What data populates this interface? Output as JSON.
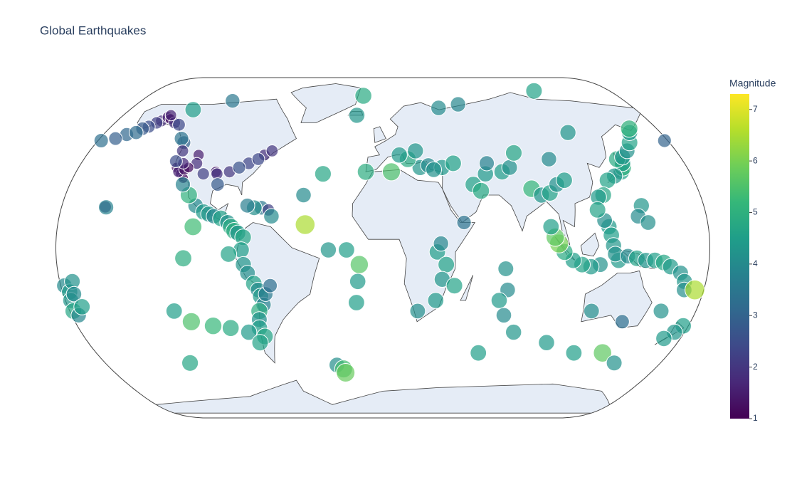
{
  "chart_data": {
    "type": "scattergeo",
    "title": "Global Earthquakes",
    "colorbar_title": "Magnitude",
    "cmin": 1,
    "cmax": 7.3,
    "colorticks": [
      1,
      2,
      3,
      4,
      5,
      6,
      7
    ],
    "colorscale": [
      "#440154",
      "#482878",
      "#3e4989",
      "#31688e",
      "#26828e",
      "#1f9e89",
      "#35b779",
      "#6ece58",
      "#b5de2b",
      "#fde725"
    ],
    "projection": "natural earth",
    "lon": [
      -150,
      -148,
      -152,
      -145,
      -155,
      -140,
      -136,
      -147,
      -158,
      -165,
      -170,
      -178,
      178,
      -160,
      -155.5,
      -155,
      -135,
      -112,
      -125,
      -128,
      -122,
      -118,
      -116,
      -120,
      -117,
      -112,
      -111,
      -115,
      -119,
      -124,
      -123,
      -105,
      -98,
      -97,
      -90,
      -95,
      -80,
      -72,
      -68,
      -75,
      -85,
      -105,
      -100,
      -97,
      -94,
      -110,
      -115,
      -90,
      -86,
      -84,
      -82,
      -80,
      -68,
      -64,
      -62,
      -72,
      -76,
      -77,
      -78,
      -77,
      -75,
      -72,
      -70,
      -69,
      -68,
      -71,
      -72,
      -73,
      -71,
      -66,
      -63,
      -110,
      -105,
      -85,
      -120,
      -112,
      -100,
      -90,
      -80,
      -75,
      -125,
      -43,
      -30,
      -20,
      -13,
      -14,
      -15,
      -35,
      -45,
      -18,
      -30,
      -26,
      -25,
      22,
      27,
      35,
      42,
      30,
      15,
      10,
      20,
      -10,
      5,
      52,
      56,
      60,
      70,
      75,
      85,
      90,
      95,
      100,
      105,
      80,
      100,
      62,
      55,
      40,
      120,
      120,
      -15,
      30,
      35,
      33,
      30,
      40,
      20,
      32,
      45,
      68,
      70,
      66,
      70,
      78,
      100,
      120,
      138,
      150,
      60,
      140,
      142,
      143,
      141,
      145,
      150,
      155,
      160,
      162,
      135,
      130,
      125,
      122,
      145,
      142,
      147,
      125,
      126,
      123,
      120,
      127,
      120,
      115,
      110,
      105,
      100,
      97,
      95,
      93,
      130,
      128,
      135,
      140,
      145,
      150,
      155,
      159,
      165,
      168,
      169,
      -178,
      -176,
      -177,
      -178,
      -176,
      177,
      174,
      170,
      175,
      160,
      140,
      120,
      -173,
      -174,
      -172
    ],
    "lat": [
      61,
      63,
      60,
      62,
      58,
      60,
      59,
      64,
      57,
      54,
      52,
      51,
      51,
      55,
      19.4,
      19.2,
      67,
      72,
      50,
      52,
      38,
      35,
      33,
      36,
      37,
      44,
      40,
      38,
      40,
      41,
      46,
      35,
      36,
      35,
      36,
      30,
      40,
      44,
      46,
      42,
      38,
      20,
      17,
      16,
      15,
      25,
      30,
      14,
      12,
      10,
      8,
      7,
      19,
      18,
      15,
      19,
      20,
      5,
      -1,
      -8,
      -12,
      -17,
      -20,
      -23,
      -27,
      -30,
      -34,
      -38,
      -42,
      -22,
      -18,
      -5,
      10,
      -3,
      -30,
      -35,
      -37,
      -38,
      -40,
      -45,
      -55,
      11,
      -1,
      -1,
      -8,
      -16,
      -26,
      35,
      25,
      64,
      -56,
      -58,
      -60,
      38,
      39,
      38,
      40,
      37,
      42,
      44,
      46,
      36,
      36,
      30,
      27,
      35,
      36,
      38,
      28,
      25,
      26,
      30,
      32,
      45,
      42,
      40,
      70,
      68,
      55,
      78,
      75,
      -2,
      -8,
      -15,
      -25,
      -18,
      -30,
      2,
      12,
      -10,
      -20,
      -25,
      -32,
      -40,
      -45,
      -50,
      -50,
      -55,
      -50,
      36,
      38,
      40,
      42,
      43,
      46,
      50,
      55,
      57,
      34,
      32,
      25,
      24,
      20,
      15,
      12,
      10,
      6,
      13,
      18,
      1,
      -8,
      -9,
      -8,
      -6,
      -2,
      2,
      5,
      10,
      -6,
      -3,
      -4,
      -5,
      -6,
      -6,
      -7,
      -9,
      -12,
      -16,
      -20,
      -18,
      -21,
      -25,
      -30,
      -32,
      -37,
      -40,
      -43,
      -20,
      -30,
      -35,
      -30,
      -16,
      -22,
      -28
    ],
    "values": [
      1.8,
      1.5,
      2.2,
      1.2,
      2.5,
      1.9,
      2.4,
      1.6,
      2.8,
      3.1,
      2.9,
      3.3,
      3.0,
      3.2,
      2.1,
      3.8,
      4.5,
      3.5,
      3.0,
      3.4,
      1.2,
      1.4,
      1.1,
      1.6,
      1.3,
      1.5,
      1.8,
      1.2,
      1.7,
      2.5,
      2.0,
      2.2,
      1.5,
      1.9,
      2.0,
      2.8,
      2.3,
      1.8,
      2.0,
      2.4,
      2.6,
      4.0,
      4.4,
      4.3,
      3.9,
      5.0,
      3.8,
      4.6,
      4.2,
      4.8,
      4.9,
      4.3,
      3.5,
      2.2,
      4.0,
      4.1,
      3.7,
      4.7,
      4.5,
      4.3,
      4.1,
      4.6,
      4.0,
      4.4,
      3.8,
      4.9,
      4.2,
      4.5,
      4.7,
      3.6,
      3.3,
      4.9,
      5.3,
      4.6,
      4.5,
      5.5,
      5.2,
      4.8,
      4.4,
      4.6,
      4.7,
      6.5,
      4.3,
      4.5,
      5.6,
      4.4,
      4.5,
      4.7,
      4.0,
      4.3,
      4.1,
      5.4,
      5.8,
      4.3,
      4.0,
      4.4,
      4.6,
      4.2,
      4.8,
      4.4,
      4.3,
      4.9,
      5.5,
      4.6,
      4.8,
      4.4,
      4.5,
      4.2,
      5.2,
      4.3,
      4.6,
      4.2,
      4.5,
      4.7,
      4.0,
      3.8,
      3.9,
      4.0,
      4.3,
      4.6,
      4.8,
      4.5,
      4.6,
      4.3,
      4.4,
      4.6,
      4.1,
      3.9,
      3.4,
      4.2,
      4.0,
      4.4,
      4.0,
      4.3,
      4.4,
      4.5,
      5.7,
      4.2,
      4.5,
      4.6,
      5.0,
      4.5,
      4.8,
      4.3,
      4.2,
      4.6,
      4.4,
      5.1,
      4.3,
      4.6,
      4.7,
      4.4,
      4.3,
      4.0,
      4.1,
      4.4,
      4.5,
      4.1,
      4.6,
      4.3,
      4.2,
      4.4,
      4.6,
      4.5,
      4.8,
      6.0,
      5.7,
      4.5,
      4.4,
      4.2,
      4.0,
      4.6,
      4.3,
      4.5,
      4.7,
      4.4,
      4.2,
      4.3,
      4.1,
      4.0,
      4.4,
      4.3,
      4.7,
      3.9,
      4.5,
      4.3,
      4.4,
      6.5,
      4.2,
      3.3,
      4.1,
      4.2,
      4.0,
      4.5
    ]
  }
}
